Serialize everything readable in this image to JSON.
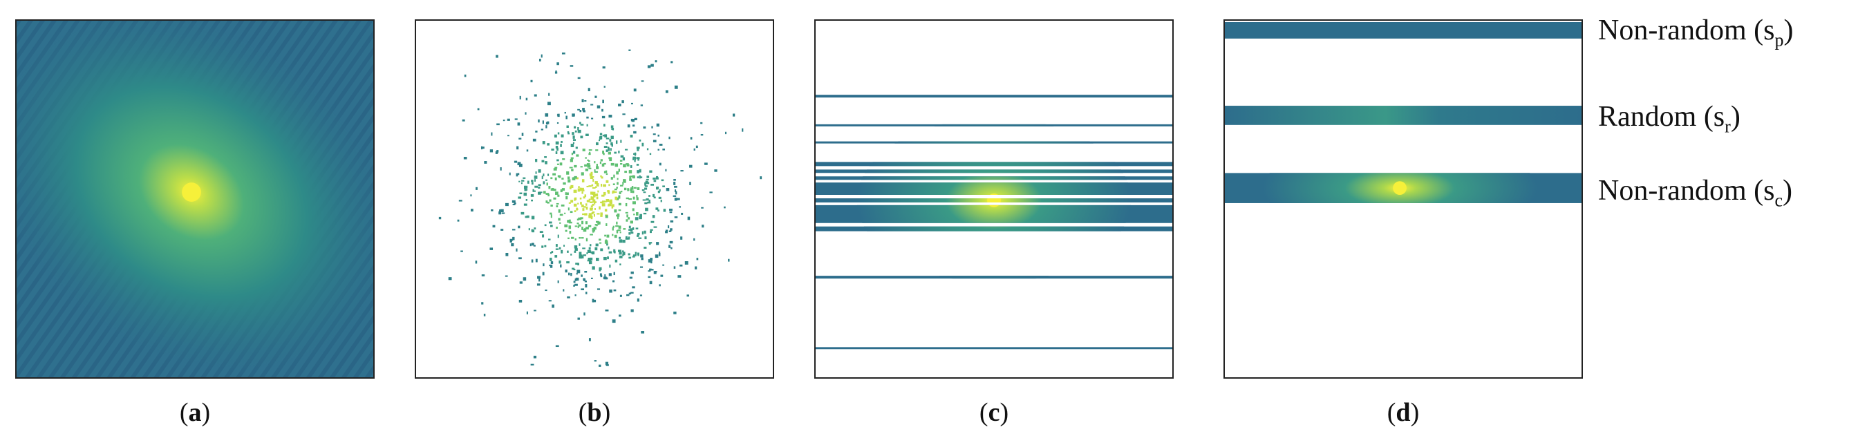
{
  "panels": [
    {
      "id": "a",
      "caption_open": "(",
      "caption_letter": "a",
      "caption_close": ")"
    },
    {
      "id": "b",
      "caption_open": "(",
      "caption_letter": "b",
      "caption_close": ")"
    },
    {
      "id": "c",
      "caption_open": "(",
      "caption_letter": "c",
      "caption_close": ")"
    },
    {
      "id": "d",
      "caption_open": "(",
      "caption_letter": "d",
      "caption_close": ")"
    }
  ],
  "labels": {
    "non_random_p": {
      "text": "Non-random (s",
      "sub": "p",
      "close": ")"
    },
    "random_r": {
      "text": "Random (s",
      "sub": "r",
      "close": ")"
    },
    "non_random_c": {
      "text": "Non-random (s",
      "sub": "c",
      "close": ")"
    }
  },
  "colors": {
    "background_texture": "#2f6f8f",
    "center_glow": "#f4ee3b",
    "mid_glow": "#5fbf72",
    "line": "#2a6b86",
    "border": "#222222"
  }
}
